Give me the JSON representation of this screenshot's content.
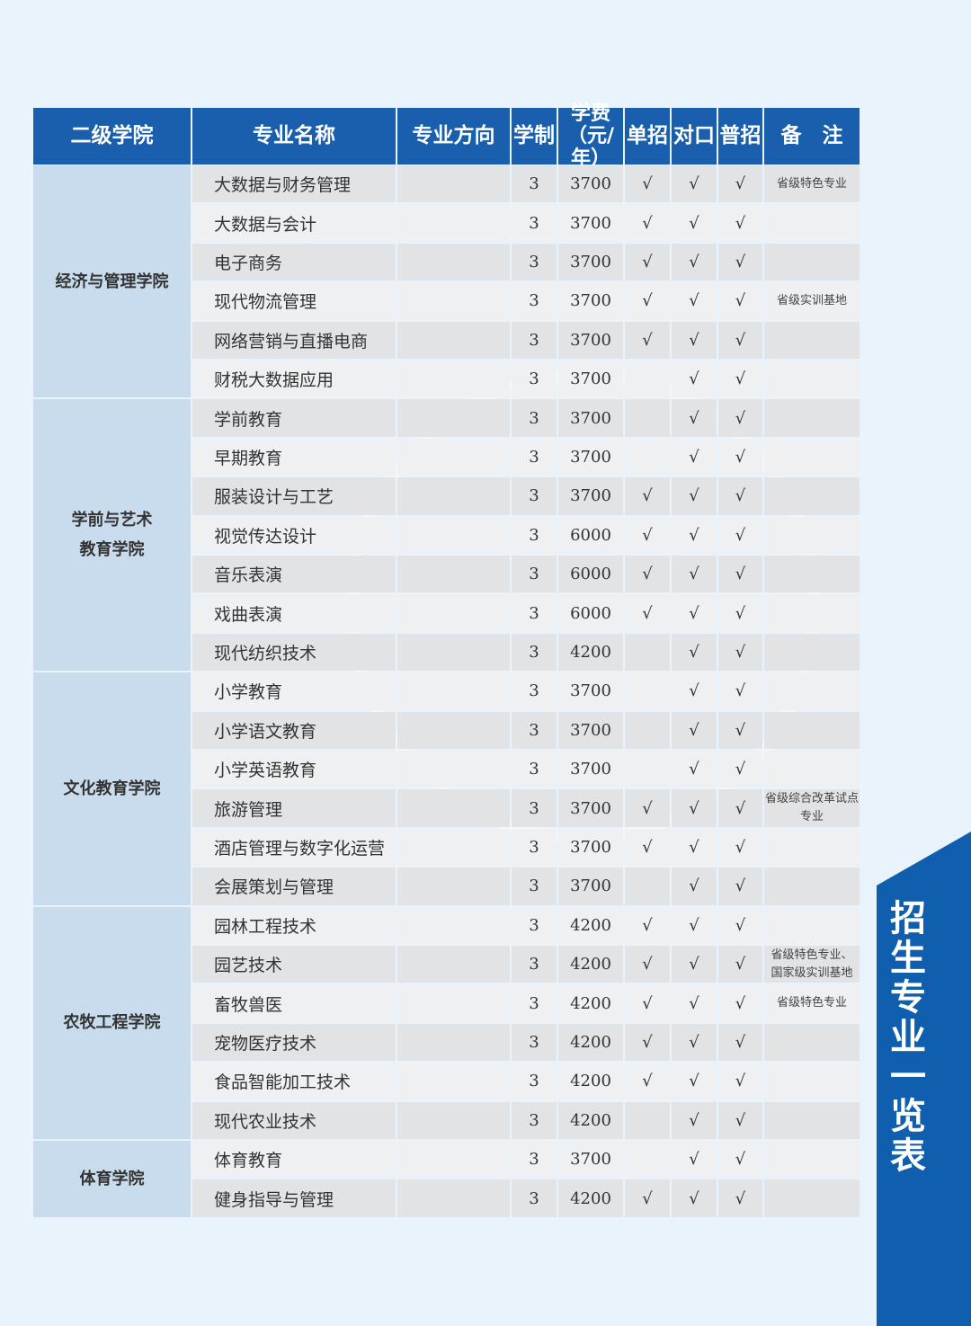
{
  "headers": [
    "二级学院",
    "专业名称",
    "专业方向",
    "学制",
    "学费\n（元/年）",
    "单招",
    "对口",
    "普招",
    "备　注"
  ],
  "check_mark": "√",
  "colleges": [
    {
      "name": "经济与管理学院",
      "rows": 6
    },
    {
      "name": "学前与艺术\n教育学院",
      "rows": 7
    },
    {
      "name": "文化教育学院",
      "rows": 6
    },
    {
      "name": "农牧工程学院",
      "rows": 6
    },
    {
      "name": "体育学院",
      "rows": 2
    }
  ],
  "rows": [
    {
      "major": "大数据与财务管理",
      "years": "3",
      "fee": "3700",
      "danzhao": true,
      "duikou": true,
      "puzhao": true,
      "note": "省级特色专业"
    },
    {
      "major": "大数据与会计",
      "years": "3",
      "fee": "3700",
      "danzhao": true,
      "duikou": true,
      "puzhao": true,
      "note": ""
    },
    {
      "major": "电子商务",
      "years": "3",
      "fee": "3700",
      "danzhao": true,
      "duikou": true,
      "puzhao": true,
      "note": ""
    },
    {
      "major": "现代物流管理",
      "years": "3",
      "fee": "3700",
      "danzhao": true,
      "duikou": true,
      "puzhao": true,
      "note": "省级实训基地"
    },
    {
      "major": "网络营销与直播电商",
      "years": "3",
      "fee": "3700",
      "danzhao": true,
      "duikou": true,
      "puzhao": true,
      "note": ""
    },
    {
      "major": "财税大数据应用",
      "years": "3",
      "fee": "3700",
      "danzhao": false,
      "duikou": true,
      "puzhao": true,
      "note": ""
    },
    {
      "major": "学前教育",
      "years": "3",
      "fee": "3700",
      "danzhao": false,
      "duikou": true,
      "puzhao": true,
      "note": ""
    },
    {
      "major": "早期教育",
      "years": "3",
      "fee": "3700",
      "danzhao": false,
      "duikou": true,
      "puzhao": true,
      "note": ""
    },
    {
      "major": "服装设计与工艺",
      "years": "3",
      "fee": "3700",
      "danzhao": true,
      "duikou": true,
      "puzhao": true,
      "note": ""
    },
    {
      "major": "视觉传达设计",
      "years": "3",
      "fee": "6000",
      "danzhao": true,
      "duikou": true,
      "puzhao": true,
      "note": ""
    },
    {
      "major": "音乐表演",
      "years": "3",
      "fee": "6000",
      "danzhao": true,
      "duikou": true,
      "puzhao": true,
      "note": ""
    },
    {
      "major": "戏曲表演",
      "years": "3",
      "fee": "6000",
      "danzhao": true,
      "duikou": true,
      "puzhao": true,
      "note": ""
    },
    {
      "major": "现代纺织技术",
      "years": "3",
      "fee": "4200",
      "danzhao": false,
      "duikou": true,
      "puzhao": true,
      "note": ""
    },
    {
      "major": "小学教育",
      "years": "3",
      "fee": "3700",
      "danzhao": false,
      "duikou": true,
      "puzhao": true,
      "note": ""
    },
    {
      "major": "小学语文教育",
      "years": "3",
      "fee": "3700",
      "danzhao": false,
      "duikou": true,
      "puzhao": true,
      "note": ""
    },
    {
      "major": "小学英语教育",
      "years": "3",
      "fee": "3700",
      "danzhao": false,
      "duikou": true,
      "puzhao": true,
      "note": ""
    },
    {
      "major": "旅游管理",
      "years": "3",
      "fee": "3700",
      "danzhao": true,
      "duikou": true,
      "puzhao": true,
      "note": "省级综合改革试点专业"
    },
    {
      "major": "酒店管理与数字化运营",
      "years": "3",
      "fee": "3700",
      "danzhao": true,
      "duikou": true,
      "puzhao": true,
      "note": ""
    },
    {
      "major": "会展策划与管理",
      "years": "3",
      "fee": "3700",
      "danzhao": false,
      "duikou": true,
      "puzhao": true,
      "note": ""
    },
    {
      "major": "园林工程技术",
      "years": "3",
      "fee": "4200",
      "danzhao": true,
      "duikou": true,
      "puzhao": true,
      "note": ""
    },
    {
      "major": "园艺技术",
      "years": "3",
      "fee": "4200",
      "danzhao": true,
      "duikou": true,
      "puzhao": true,
      "note": "省级特色专业、\n国家级实训基地"
    },
    {
      "major": "畜牧兽医",
      "years": "3",
      "fee": "4200",
      "danzhao": true,
      "duikou": true,
      "puzhao": true,
      "note": "省级特色专业"
    },
    {
      "major": "宠物医疗技术",
      "years": "3",
      "fee": "4200",
      "danzhao": true,
      "duikou": true,
      "puzhao": true,
      "note": ""
    },
    {
      "major": "食品智能加工技术",
      "years": "3",
      "fee": "4200",
      "danzhao": true,
      "duikou": true,
      "puzhao": true,
      "note": ""
    },
    {
      "major": "现代农业技术",
      "years": "3",
      "fee": "4200",
      "danzhao": false,
      "duikou": true,
      "puzhao": true,
      "note": ""
    },
    {
      "major": "体育教育",
      "years": "3",
      "fee": "3700",
      "danzhao": false,
      "duikou": true,
      "puzhao": true,
      "note": ""
    },
    {
      "major": "健身指导与管理",
      "years": "3",
      "fee": "4200",
      "danzhao": true,
      "duikou": true,
      "puzhao": true,
      "note": ""
    }
  ],
  "banner": {
    "title": "招生专业一览表"
  }
}
